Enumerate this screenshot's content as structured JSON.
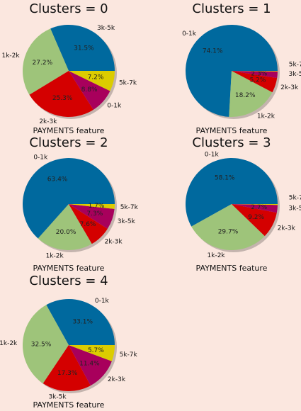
{
  "chart_data": [
    {
      "type": "pie",
      "title": "Clusters = 0",
      "xlabel": "PAYMENTS feature",
      "slices": [
        {
          "label": "3k-5k",
          "value": 31.5,
          "pct_label": "31.5%"
        },
        {
          "label": "1k-2k",
          "value": 27.2,
          "pct_label": "27.2%"
        },
        {
          "label": "2k-3k",
          "value": 25.3,
          "pct_label": "25.3%"
        },
        {
          "label": "0-1k",
          "value": 8.8,
          "pct_label": "8.8%"
        },
        {
          "label": "5k-7k",
          "value": 7.2,
          "pct_label": "7.2%"
        }
      ]
    },
    {
      "type": "pie",
      "title": "Clusters = 1",
      "xlabel": "PAYMENTS feature",
      "slices": [
        {
          "label": "0-1k",
          "value": 74.1,
          "pct_label": "74.1%"
        },
        {
          "label": "1k-2k",
          "value": 18.2,
          "pct_label": "18.2%"
        },
        {
          "label": "2k-3k",
          "value": 5.2,
          "pct_label": "5.2%"
        },
        {
          "label": "3k-5k",
          "value": 2.3,
          "pct_label": "2.3%"
        },
        {
          "label": "5k-7k",
          "value": 0.2,
          "pct_label": ""
        }
      ]
    },
    {
      "type": "pie",
      "title": "Clusters = 2",
      "xlabel": "PAYMENTS feature",
      "slices": [
        {
          "label": "0-1k",
          "value": 63.4,
          "pct_label": "63.4%"
        },
        {
          "label": "1k-2k",
          "value": 20.0,
          "pct_label": "20.0%"
        },
        {
          "label": "2k-3k",
          "value": 7.6,
          "pct_label": "7.6%"
        },
        {
          "label": "3k-5k",
          "value": 7.3,
          "pct_label": "7.3%"
        },
        {
          "label": "5k-7k",
          "value": 1.7,
          "pct_label": "1.7%"
        }
      ]
    },
    {
      "type": "pie",
      "title": "Clusters = 3",
      "xlabel": "PAYMENTS feature",
      "slices": [
        {
          "label": "0-1k",
          "value": 58.1,
          "pct_label": "58.1%"
        },
        {
          "label": "1k-2k",
          "value": 29.7,
          "pct_label": "29.7%"
        },
        {
          "label": "2k-3k",
          "value": 9.2,
          "pct_label": "9.2%"
        },
        {
          "label": "3k-5k",
          "value": 2.7,
          "pct_label": "2.7%"
        },
        {
          "label": "5k-7k",
          "value": 0.3,
          "pct_label": ""
        }
      ]
    },
    {
      "type": "pie",
      "title": "Clusters = 4",
      "xlabel": "PAYMENTS feature",
      "slices": [
        {
          "label": "0-1k",
          "value": 33.1,
          "pct_label": "33.1%"
        },
        {
          "label": "1k-2k",
          "value": 32.5,
          "pct_label": "32.5%"
        },
        {
          "label": "3k-5k",
          "value": 17.3,
          "pct_label": "17.3%"
        },
        {
          "label": "2k-3k",
          "value": 11.4,
          "pct_label": "11.4%"
        },
        {
          "label": "5k-7k",
          "value": 5.7,
          "pct_label": "5.7%"
        }
      ]
    }
  ],
  "colors": {
    "0-1k": "#00699e",
    "1k-2k": "#9ec47a",
    "2k-3k": "#d40000",
    "3k-5k": "#a8005c",
    "5k-7k": "#dccc00"
  },
  "cluster_0_override": {
    "3k-5k": "#00699e",
    "1k-2k": "#9ec47a",
    "2k-3k": "#d40000",
    "0-1k": "#a8005c",
    "5k-7k": "#dccc00"
  },
  "cluster_4_override": {
    "0-1k": "#00699e",
    "1k-2k": "#9ec47a",
    "3k-5k": "#d40000",
    "2k-3k": "#a8005c",
    "5k-7k": "#dccc00"
  },
  "background": "#fbe7df"
}
